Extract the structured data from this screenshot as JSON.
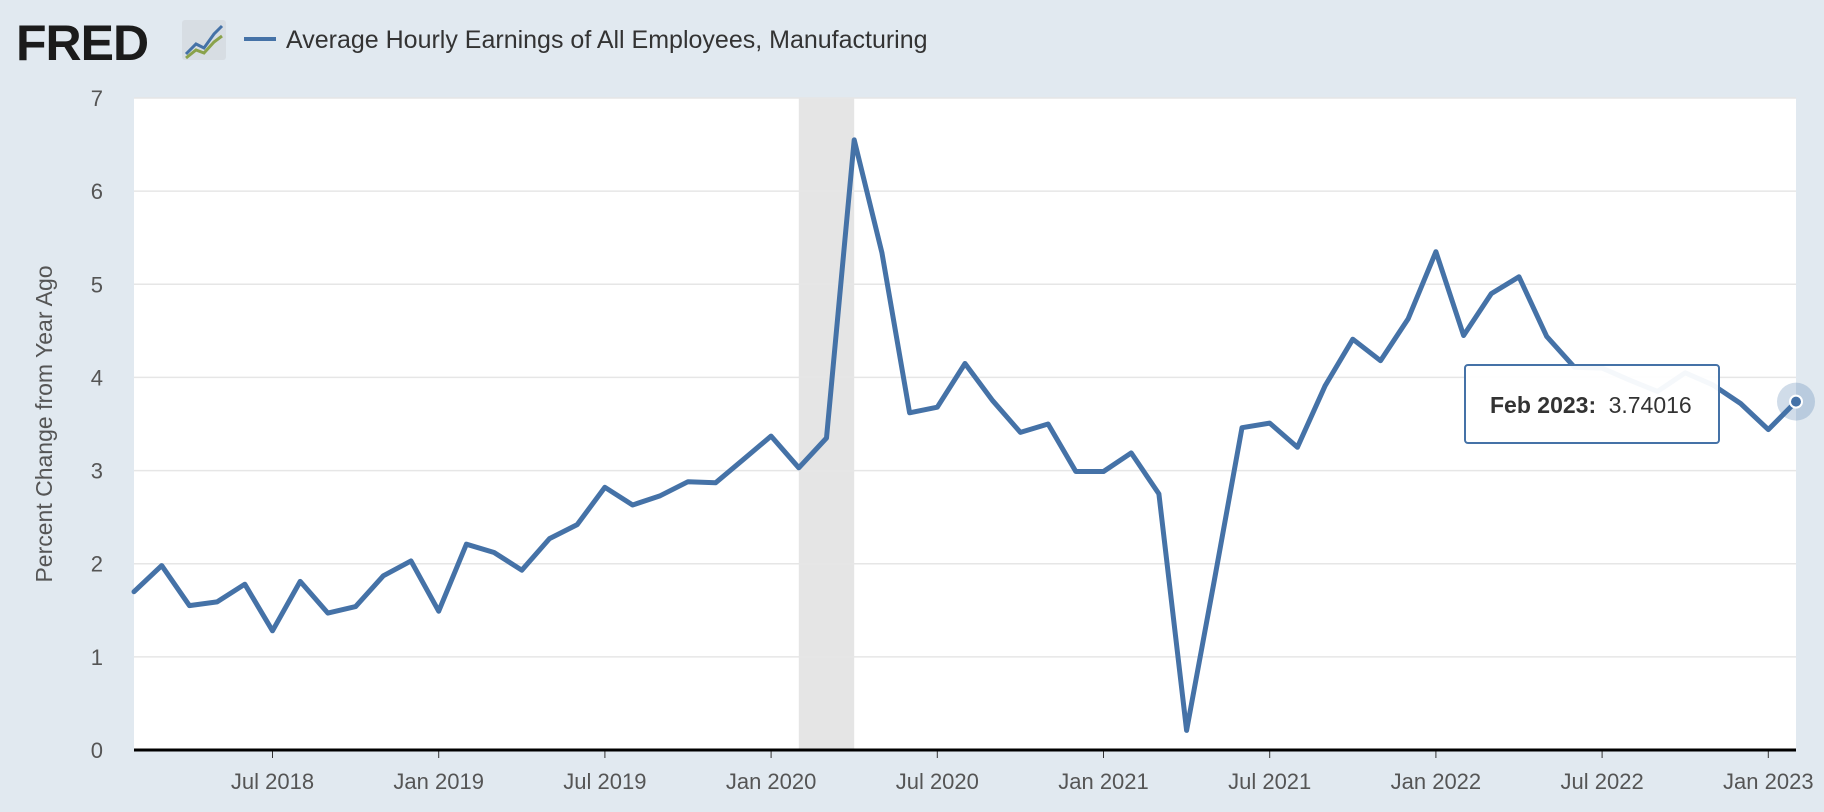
{
  "header": {
    "logo_text": "FRED",
    "logo_icon": "line-graph-icon",
    "series_title": "Average Hourly Earnings of All Employees, Manufacturing",
    "series_color": "#4572a7"
  },
  "tooltip": {
    "date": "Feb 2023:",
    "value": "3.74016"
  },
  "chart_data": {
    "type": "line",
    "title": "Average Hourly Earnings of All Employees, Manufacturing",
    "xlabel": "",
    "ylabel": "Percent Change from Year Ago",
    "ylim": [
      0,
      7
    ],
    "yticks": [
      0,
      1,
      2,
      3,
      4,
      5,
      6,
      7
    ],
    "xlim": [
      "2018-02",
      "2023-02"
    ],
    "xticks": [
      {
        "date": "2018-07",
        "label": "Jul 2018"
      },
      {
        "date": "2019-01",
        "label": "Jan 2019"
      },
      {
        "date": "2019-07",
        "label": "Jul 2019"
      },
      {
        "date": "2020-01",
        "label": "Jan 2020"
      },
      {
        "date": "2020-07",
        "label": "Jul 2020"
      },
      {
        "date": "2021-01",
        "label": "Jan 2021"
      },
      {
        "date": "2021-07",
        "label": "Jul 2021"
      },
      {
        "date": "2022-01",
        "label": "Jan 2022"
      },
      {
        "date": "2022-07",
        "label": "Jul 2022"
      },
      {
        "date": "2023-01",
        "label": "Jan 2023"
      }
    ],
    "grid": true,
    "recession_shading": {
      "start": "2020-02",
      "end": "2020-04",
      "color": "#e5e5e5"
    },
    "series": [
      {
        "name": "Average Hourly Earnings of All Employees, Manufacturing",
        "color": "#4572a7",
        "x": [
          "2018-02",
          "2018-03",
          "2018-04",
          "2018-05",
          "2018-06",
          "2018-07",
          "2018-08",
          "2018-09",
          "2018-10",
          "2018-11",
          "2018-12",
          "2019-01",
          "2019-02",
          "2019-03",
          "2019-04",
          "2019-05",
          "2019-06",
          "2019-07",
          "2019-08",
          "2019-09",
          "2019-10",
          "2019-11",
          "2019-12",
          "2020-01",
          "2020-02",
          "2020-03",
          "2020-04",
          "2020-05",
          "2020-06",
          "2020-07",
          "2020-08",
          "2020-09",
          "2020-10",
          "2020-11",
          "2020-12",
          "2021-01",
          "2021-02",
          "2021-03",
          "2021-04",
          "2021-05",
          "2021-06",
          "2021-07",
          "2021-08",
          "2021-09",
          "2021-10",
          "2021-11",
          "2021-12",
          "2022-01",
          "2022-02",
          "2022-03",
          "2022-04",
          "2022-05",
          "2022-06",
          "2022-07",
          "2022-08",
          "2022-09",
          "2022-10",
          "2022-11",
          "2022-12",
          "2023-01",
          "2023-02"
        ],
        "y": [
          1.7,
          1.98,
          1.55,
          1.59,
          1.78,
          1.28,
          1.81,
          1.47,
          1.54,
          1.87,
          2.03,
          1.49,
          2.21,
          2.12,
          1.93,
          2.27,
          2.42,
          2.82,
          2.63,
          2.73,
          2.88,
          2.87,
          3.12,
          3.37,
          3.03,
          3.35,
          6.55,
          5.34,
          3.62,
          3.68,
          4.15,
          3.75,
          3.41,
          3.5,
          2.99,
          2.99,
          3.19,
          2.75,
          0.21,
          1.82,
          3.46,
          3.51,
          3.25,
          3.91,
          4.41,
          4.18,
          4.63,
          5.35,
          4.45,
          4.9,
          5.08,
          4.44,
          4.11,
          4.1,
          3.97,
          3.85,
          4.05,
          3.92,
          3.72,
          3.44,
          3.74016
        ]
      }
    ]
  }
}
